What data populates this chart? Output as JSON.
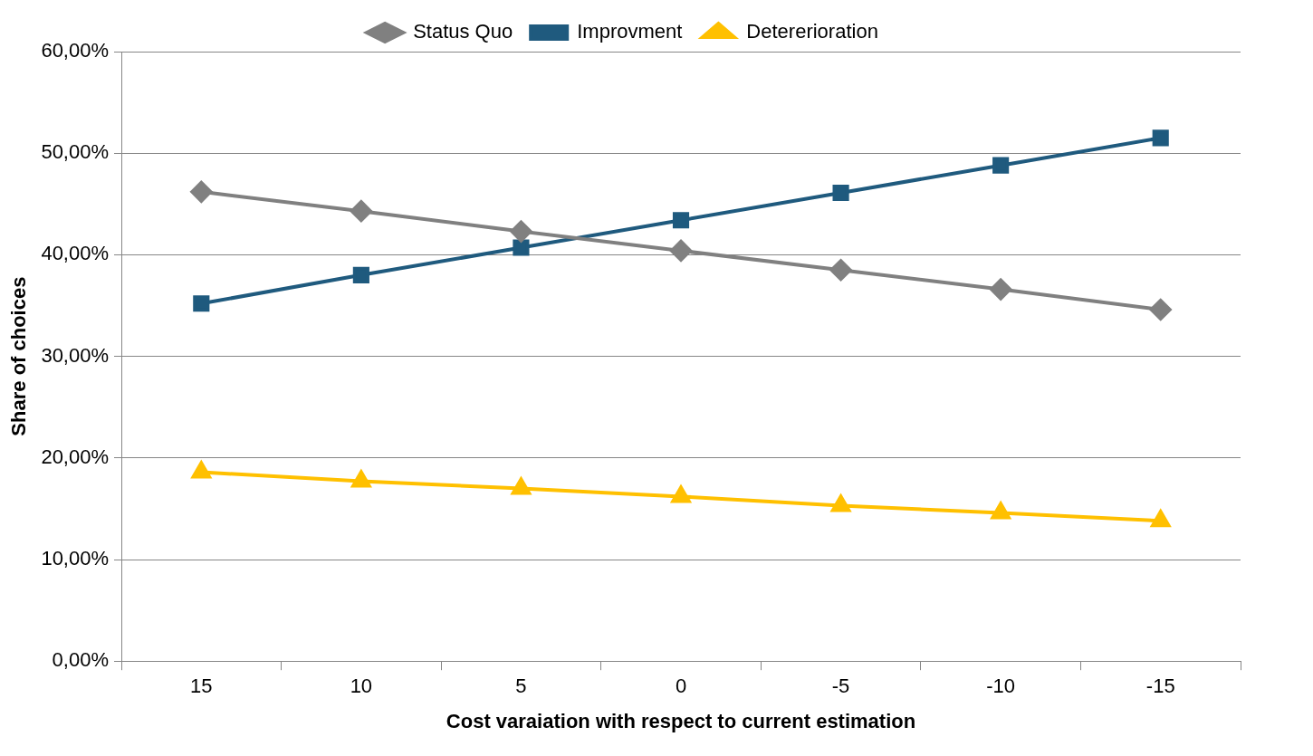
{
  "chart_data": {
    "type": "line",
    "xlabel": "Cost varaiation with respect to current estimation",
    "ylabel": "Share of choices",
    "categories": [
      "15",
      "10",
      "5",
      "0",
      "-5",
      "-10",
      "-15"
    ],
    "series": [
      {
        "name": "Status Quo",
        "color": "#808080",
        "marker": "diamond",
        "values": [
          46.2,
          44.3,
          42.3,
          40.4,
          38.5,
          36.6,
          34.6
        ]
      },
      {
        "name": "Improvment",
        "color": "#1f5a7e",
        "marker": "square",
        "values": [
          35.2,
          38.0,
          40.7,
          43.4,
          46.1,
          48.8,
          51.5
        ]
      },
      {
        "name": "Detererioration",
        "color": "#ffc000",
        "marker": "triangle",
        "values": [
          18.6,
          17.7,
          17.0,
          16.2,
          15.3,
          14.6,
          13.8
        ]
      }
    ],
    "ylim": [
      0,
      60
    ],
    "yticks": [
      {
        "value": 0,
        "label": "0,00%"
      },
      {
        "value": 10,
        "label": "10,00%"
      },
      {
        "value": 20,
        "label": "20,00%"
      },
      {
        "value": 30,
        "label": "30,00%"
      },
      {
        "value": 40,
        "label": "40,00%"
      },
      {
        "value": 50,
        "label": "50,00%"
      },
      {
        "value": 60,
        "label": "60,00%"
      }
    ],
    "grid": "y",
    "legend": "top",
    "line_style": "solid"
  }
}
